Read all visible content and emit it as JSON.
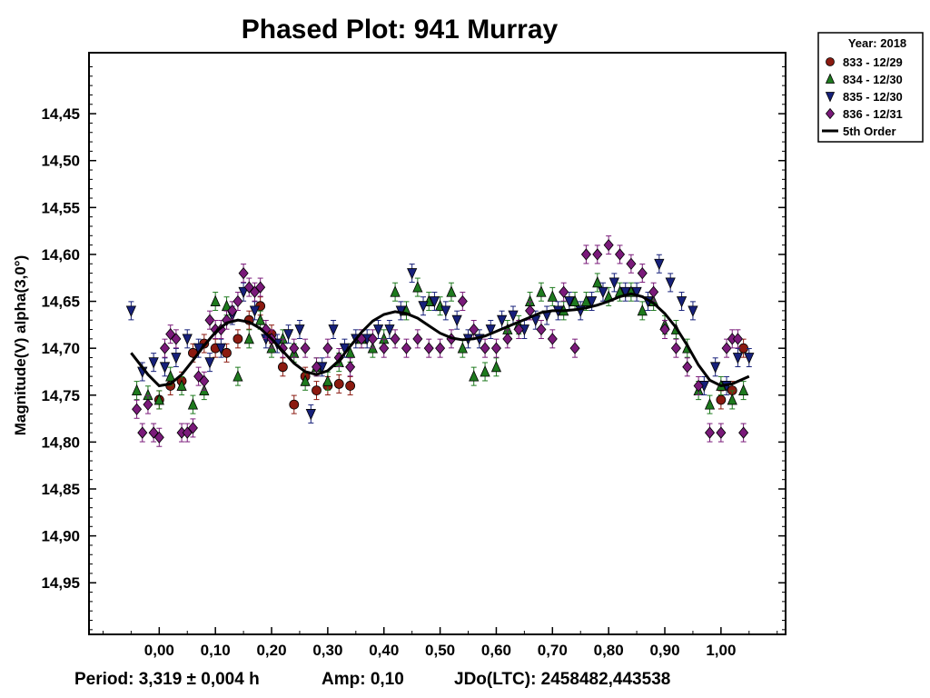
{
  "chart_data": {
    "type": "scatter",
    "title": "Phased Plot: 941 Murray",
    "xlabel": "",
    "ylabel": "Magnitude(V) alpha(3,0°)",
    "xlim": [
      -0.125,
      1.115
    ],
    "ylim": [
      14.385,
      15.005
    ],
    "y_inverted": true,
    "x_ticks": [
      "0,00",
      "0,10",
      "0,20",
      "0,30",
      "0,40",
      "0,50",
      "0,60",
      "0,70",
      "0,80",
      "0,90",
      "1,00"
    ],
    "y_ticks": [
      "14,45",
      "14,50",
      "14,55",
      "14,60",
      "14,65",
      "14,70",
      "14,75",
      "14,80",
      "14,85",
      "14,90",
      "14,95"
    ],
    "legend": {
      "title": "Year: 2018",
      "position": "outside top-right",
      "entries": [
        {
          "label": "833 - 12/29",
          "marker": "circle",
          "color": "#8b1a10"
        },
        {
          "label": "834 - 12/30",
          "marker": "triangle-up",
          "color": "#1e7a1e"
        },
        {
          "label": "835 - 12/30",
          "marker": "triangle-down",
          "color": "#16207a"
        },
        {
          "label": "836 - 12/31",
          "marker": "diamond",
          "color": "#7a1a7a"
        },
        {
          "label": "5th Order",
          "marker": "line",
          "color": "#000000"
        }
      ]
    },
    "fit_curve": {
      "name": "5th Order",
      "x": [
        -0.05,
        -0.02,
        0.0,
        0.02,
        0.04,
        0.06,
        0.08,
        0.1,
        0.12,
        0.14,
        0.16,
        0.18,
        0.2,
        0.22,
        0.24,
        0.26,
        0.28,
        0.3,
        0.32,
        0.34,
        0.36,
        0.38,
        0.4,
        0.42,
        0.44,
        0.46,
        0.48,
        0.5,
        0.52,
        0.54,
        0.56,
        0.58,
        0.6,
        0.62,
        0.64,
        0.66,
        0.68,
        0.7,
        0.72,
        0.74,
        0.76,
        0.78,
        0.8,
        0.82,
        0.84,
        0.86,
        0.88,
        0.9,
        0.92,
        0.94,
        0.96,
        0.98,
        1.0,
        1.02,
        1.05
      ],
      "y": [
        14.705,
        14.728,
        14.74,
        14.738,
        14.728,
        14.713,
        14.697,
        14.683,
        14.673,
        14.67,
        14.672,
        14.679,
        14.69,
        14.703,
        14.716,
        14.725,
        14.728,
        14.724,
        14.713,
        14.698,
        14.683,
        14.671,
        14.664,
        14.661,
        14.663,
        14.668,
        14.676,
        14.684,
        14.689,
        14.691,
        14.69,
        14.687,
        14.682,
        14.677,
        14.672,
        14.667,
        14.662,
        14.66,
        14.66,
        14.659,
        14.657,
        14.654,
        14.65,
        14.645,
        14.642,
        14.645,
        14.652,
        14.663,
        14.678,
        14.697,
        14.718,
        14.734,
        14.74,
        14.738,
        14.73
      ]
    },
    "series": [
      {
        "name": "833 - 12/29",
        "marker": "circle",
        "color": "#8b1a10",
        "x": [
          0.0,
          0.02,
          0.04,
          0.06,
          0.08,
          0.1,
          0.12,
          0.14,
          0.16,
          0.18,
          0.2,
          0.22,
          0.24,
          0.26,
          0.28,
          0.3,
          0.32,
          0.34,
          1.0,
          1.02,
          1.04
        ],
        "y": [
          14.755,
          14.74,
          14.735,
          14.705,
          14.695,
          14.7,
          14.705,
          14.69,
          14.67,
          14.655,
          14.685,
          14.72,
          14.76,
          14.73,
          14.745,
          14.74,
          14.738,
          14.74,
          14.755,
          14.745,
          14.7
        ]
      },
      {
        "name": "834 - 12/30",
        "marker": "triangle-up",
        "color": "#1e7a1e",
        "x": [
          -0.04,
          -0.02,
          0.0,
          0.02,
          0.04,
          0.06,
          0.08,
          0.1,
          0.12,
          0.14,
          0.16,
          0.18,
          0.2,
          0.22,
          0.24,
          0.26,
          0.28,
          0.3,
          0.32,
          0.34,
          0.36,
          0.38,
          0.4,
          0.42,
          0.44,
          0.46,
          0.48,
          0.5,
          0.52,
          0.54,
          0.56,
          0.58,
          0.6,
          0.62,
          0.64,
          0.66,
          0.68,
          0.7,
          0.72,
          0.74,
          0.76,
          0.78,
          0.8,
          0.82,
          0.84,
          0.86,
          0.88,
          0.9,
          0.92,
          0.94,
          0.96,
          0.98,
          1.0,
          1.02,
          1.04
        ],
        "y": [
          14.745,
          14.75,
          14.755,
          14.73,
          14.74,
          14.76,
          14.745,
          14.65,
          14.655,
          14.73,
          14.69,
          14.67,
          14.7,
          14.69,
          14.705,
          14.735,
          14.72,
          14.735,
          14.715,
          14.705,
          14.69,
          14.7,
          14.69,
          14.64,
          14.66,
          14.635,
          14.65,
          14.655,
          14.64,
          14.7,
          14.73,
          14.725,
          14.72,
          14.68,
          14.675,
          14.65,
          14.64,
          14.645,
          14.66,
          14.65,
          14.65,
          14.63,
          14.645,
          14.64,
          14.64,
          14.66,
          14.65,
          14.675,
          14.68,
          14.7,
          14.745,
          14.76,
          14.74,
          14.755,
          14.745
        ]
      },
      {
        "name": "835 - 12/30",
        "marker": "triangle-down",
        "color": "#16207a",
        "x": [
          -0.05,
          -0.03,
          -0.01,
          0.01,
          0.03,
          0.05,
          0.07,
          0.09,
          0.11,
          0.13,
          0.15,
          0.17,
          0.19,
          0.21,
          0.23,
          0.25,
          0.27,
          0.29,
          0.31,
          0.33,
          0.35,
          0.37,
          0.39,
          0.41,
          0.43,
          0.45,
          0.47,
          0.49,
          0.51,
          0.53,
          0.55,
          0.57,
          0.59,
          0.61,
          0.63,
          0.65,
          0.67,
          0.69,
          0.71,
          0.73,
          0.75,
          0.77,
          0.79,
          0.81,
          0.83,
          0.85,
          0.87,
          0.89,
          0.91,
          0.93,
          0.95,
          0.97,
          0.99,
          1.01,
          1.03,
          1.05
        ],
        "y": [
          14.66,
          14.725,
          14.715,
          14.72,
          14.71,
          14.69,
          14.7,
          14.715,
          14.7,
          14.665,
          14.64,
          14.66,
          14.69,
          14.695,
          14.685,
          14.68,
          14.77,
          14.72,
          14.68,
          14.7,
          14.69,
          14.69,
          14.68,
          14.68,
          14.66,
          14.62,
          14.655,
          14.65,
          14.66,
          14.67,
          14.69,
          14.69,
          14.68,
          14.67,
          14.665,
          14.68,
          14.67,
          14.665,
          14.66,
          14.65,
          14.66,
          14.65,
          14.64,
          14.63,
          14.64,
          14.64,
          14.65,
          14.61,
          14.63,
          14.65,
          14.66,
          14.74,
          14.72,
          14.74,
          14.71,
          14.71
        ]
      },
      {
        "name": "836 - 12/31",
        "marker": "diamond",
        "color": "#7a1a7a",
        "x": [
          -0.04,
          -0.03,
          -0.02,
          -0.01,
          0.0,
          0.01,
          0.02,
          0.03,
          0.04,
          0.05,
          0.06,
          0.07,
          0.08,
          0.09,
          0.1,
          0.11,
          0.12,
          0.13,
          0.14,
          0.15,
          0.16,
          0.17,
          0.18,
          0.19,
          0.2,
          0.22,
          0.24,
          0.26,
          0.28,
          0.3,
          0.32,
          0.34,
          0.36,
          0.38,
          0.4,
          0.42,
          0.44,
          0.46,
          0.48,
          0.5,
          0.52,
          0.54,
          0.56,
          0.58,
          0.6,
          0.62,
          0.64,
          0.66,
          0.68,
          0.7,
          0.72,
          0.74,
          0.76,
          0.78,
          0.8,
          0.82,
          0.84,
          0.86,
          0.88,
          0.9,
          0.92,
          0.94,
          0.96,
          0.98,
          1.0,
          1.01,
          1.02,
          1.03,
          1.04
        ],
        "y": [
          14.765,
          14.79,
          14.76,
          14.79,
          14.795,
          14.7,
          14.685,
          14.69,
          14.79,
          14.79,
          14.785,
          14.73,
          14.735,
          14.67,
          14.68,
          14.68,
          14.67,
          14.66,
          14.65,
          14.62,
          14.635,
          14.64,
          14.635,
          14.68,
          14.69,
          14.7,
          14.7,
          14.7,
          14.72,
          14.7,
          14.71,
          14.72,
          14.69,
          14.69,
          14.7,
          14.69,
          14.7,
          14.69,
          14.7,
          14.7,
          14.69,
          14.65,
          14.68,
          14.7,
          14.7,
          14.69,
          14.68,
          14.66,
          14.68,
          14.69,
          14.64,
          14.7,
          14.6,
          14.6,
          14.59,
          14.6,
          14.61,
          14.62,
          14.64,
          14.68,
          14.7,
          14.72,
          14.74,
          14.79,
          14.79,
          14.7,
          14.69,
          14.69,
          14.79
        ]
      }
    ]
  },
  "footer": {
    "period": "Period: 3,319 ± 0,004 h",
    "amp": "Amp: 0,10",
    "jdo": "JDo(LTC): 2458482,443538"
  }
}
